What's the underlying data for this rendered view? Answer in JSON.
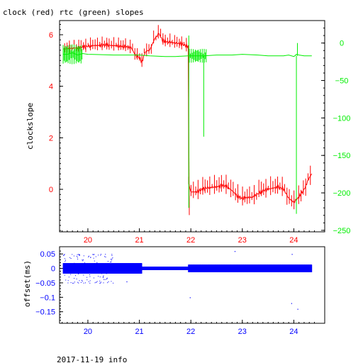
{
  "title": "clock (red) rtc (green) slopes",
  "footer": "2017-11-19 info",
  "colors": {
    "clock": "#ff0000",
    "rtc": "#00ee00",
    "offset": "#0000ff",
    "frame": "#000000"
  },
  "chart_data": [
    {
      "id": "slopes",
      "type": "line",
      "title": "clock (red) rtc (green) slopes",
      "xlim": [
        19.45,
        24.6
      ],
      "x_ticks": [
        "20",
        "21",
        "22",
        "23",
        "24"
      ],
      "y_left": {
        "label": "clockslope",
        "lim": [
          -1.65,
          6.55
        ],
        "ticks": [
          "6",
          "4",
          "2",
          "0"
        ]
      },
      "y_right": {
        "label": "",
        "lim": [
          -252,
          30
        ],
        "ticks": [
          "0",
          "−50",
          "−100",
          "−150",
          "−200",
          "−250"
        ]
      },
      "series": [
        {
          "name": "clock",
          "color": "#ff0000",
          "axis": "left",
          "x": [
            19.52,
            19.7,
            19.9,
            20.1,
            20.3,
            20.5,
            20.7,
            20.85,
            20.92,
            21.0,
            21.05,
            21.12,
            21.2,
            21.3,
            21.38,
            21.45,
            21.55,
            21.7,
            21.85,
            21.95,
            21.96,
            22.0,
            22.1,
            22.3,
            22.5,
            22.6,
            22.7,
            22.8,
            22.9,
            23.0,
            23.2,
            23.4,
            23.6,
            23.7,
            23.8,
            23.9,
            24.0,
            24.1,
            24.2,
            24.3,
            24.35
          ],
          "y": [
            5.45,
            5.47,
            5.52,
            5.58,
            5.6,
            5.58,
            5.55,
            5.48,
            5.2,
            5.1,
            4.95,
            5.35,
            5.4,
            5.85,
            6.05,
            5.78,
            5.72,
            5.68,
            5.62,
            5.55,
            0.3,
            -0.1,
            -0.1,
            0.05,
            0.1,
            0.15,
            0.1,
            -0.05,
            -0.25,
            -0.35,
            -0.3,
            -0.05,
            0.05,
            0.08,
            0.02,
            -0.35,
            -0.5,
            -0.3,
            0.0,
            0.45,
            0.6
          ]
        },
        {
          "name": "rtc",
          "color": "#00ee00",
          "axis": "right",
          "x": [
            19.52,
            19.6,
            19.7,
            19.8,
            19.9,
            20.0,
            20.5,
            21.0,
            21.2,
            21.5,
            21.7,
            21.95,
            22.1,
            22.25,
            22.5,
            22.8,
            23.0,
            23.3,
            23.5,
            23.7,
            23.8,
            23.9,
            24.0,
            24.02,
            24.05,
            24.1,
            24.2,
            24.35
          ],
          "y": [
            -15,
            -15,
            -13,
            -16,
            -14,
            -15,
            -16,
            -16,
            -17,
            -18,
            -18,
            -17,
            -17,
            -17,
            -16,
            -16,
            -15,
            -16,
            -17,
            -17,
            -17,
            -16,
            -18,
            -17,
            -15,
            -16,
            -17,
            -17
          ]
        }
      ]
    },
    {
      "id": "offset",
      "type": "scatter",
      "title": "",
      "xlim": [
        19.45,
        24.6
      ],
      "x_ticks": [
        "20",
        "21",
        "22",
        "23",
        "24"
      ],
      "ylabel": "offset(ms)",
      "ylim": [
        -0.19,
        0.075
      ],
      "y_ticks": [
        "0.05",
        "0",
        "−0.05",
        "−0.1",
        "−0.15"
      ],
      "series": [
        {
          "name": "offset",
          "color": "#0000ff",
          "x_range": [
            19.52,
            24.35
          ],
          "center": 0.0
        }
      ]
    }
  ]
}
